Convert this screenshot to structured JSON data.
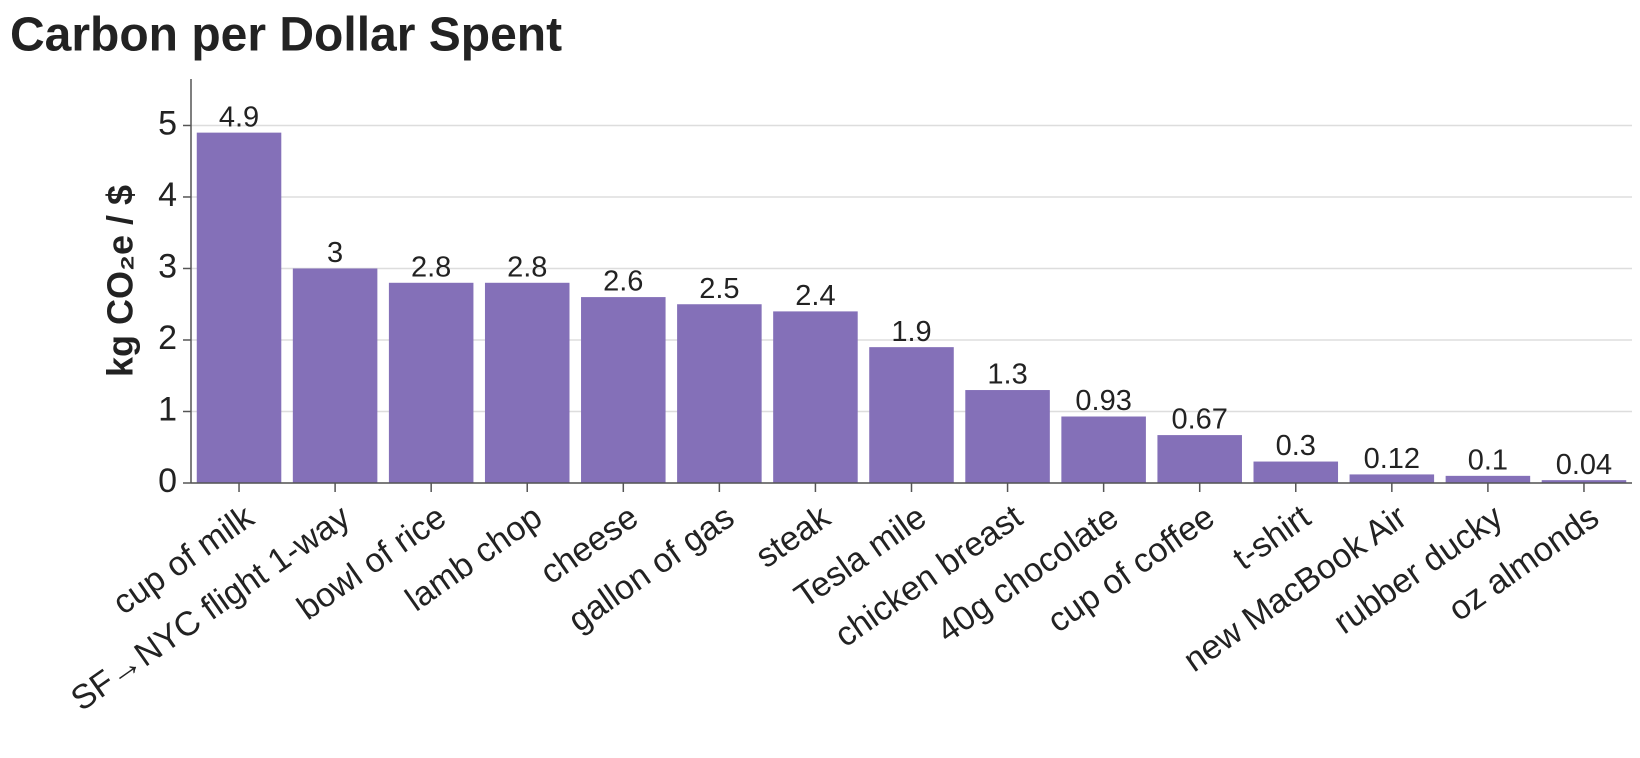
{
  "chart_data": {
    "type": "bar",
    "title": "Carbon per Dollar Spent",
    "y_label": "kg CO₂e / $",
    "categories": [
      "cup of milk",
      "SF→NYC flight 1-way",
      "bowl of rice",
      "lamb chop",
      "cheese",
      "gallon of gas",
      "steak",
      "Tesla mile",
      "chicken breast",
      "40g chocolate",
      "cup of coffee",
      "t-shirt",
      "new MacBook Air",
      "rubber ducky",
      "oz almonds"
    ],
    "values": [
      4.9,
      3,
      2.8,
      2.8,
      2.6,
      2.5,
      2.4,
      1.9,
      1.3,
      0.93,
      0.67,
      0.3,
      0.12,
      0.1,
      0.04
    ],
    "color": "#8470b8",
    "ylim": [
      0,
      5.65
    ],
    "yticks": [
      0,
      1,
      2,
      3,
      4,
      5
    ],
    "grid": true
  }
}
